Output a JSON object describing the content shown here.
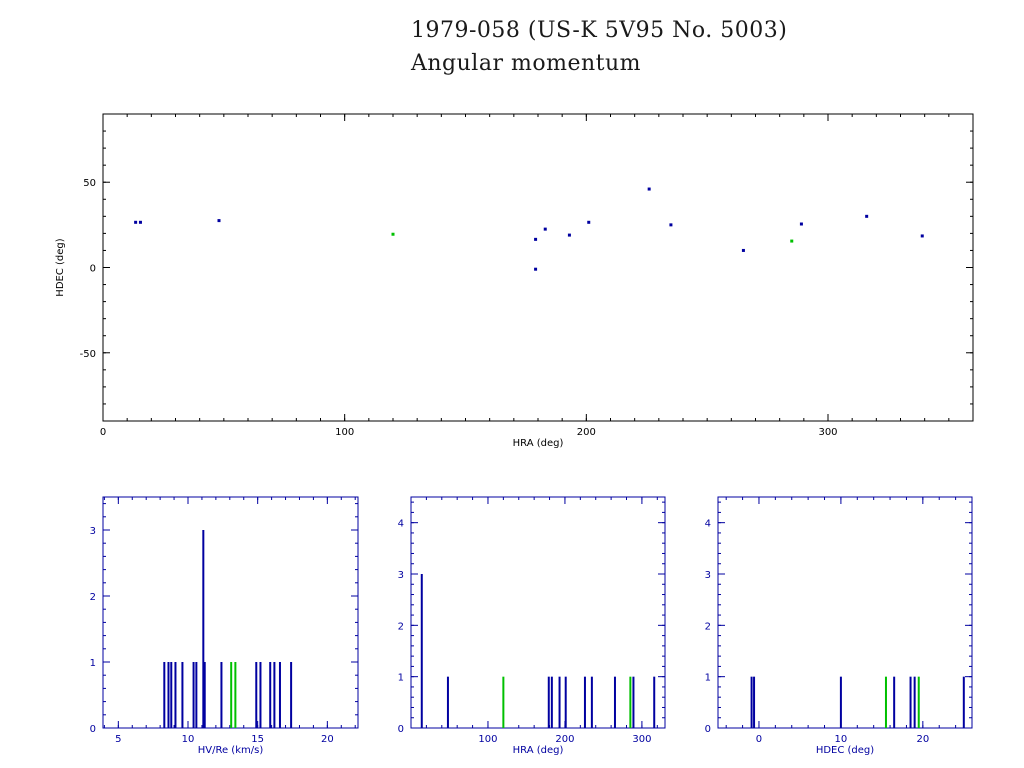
{
  "title": {
    "line1": "1979-058 (US-K 5V95 No. 5003)",
    "line2": "Angular momentum"
  },
  "colors": {
    "frame_black": "#000000",
    "frame_blue": "#0000a0",
    "series_blue": "#0000a0",
    "series_green": "#00c000"
  },
  "chart_data": [
    {
      "type": "scatter",
      "xlabel": "HRA (deg)",
      "ylabel": "HDEC (deg)",
      "xlim": [
        0,
        360
      ],
      "ylim": [
        -90,
        90
      ],
      "xticks": [
        0,
        100,
        200,
        300
      ],
      "yticks": [
        -50,
        0,
        50
      ],
      "series": [
        {
          "color": "blue",
          "points": [
            [
              13.5,
              26.5
            ],
            [
              15.5,
              26.5
            ],
            [
              48,
              27.5
            ],
            [
              179,
              16.5
            ],
            [
              179,
              -1
            ],
            [
              183,
              22.5
            ],
            [
              193,
              19
            ],
            [
              201,
              26.5
            ],
            [
              226,
              46
            ],
            [
              235,
              25
            ],
            [
              265,
              10
            ],
            [
              289,
              25.5
            ],
            [
              316,
              30
            ],
            [
              339,
              18.5
            ]
          ]
        },
        {
          "color": "green",
          "points": [
            [
              120,
              19.5
            ],
            [
              285,
              15.5
            ]
          ]
        }
      ]
    },
    {
      "type": "bar",
      "xlabel": "HV/Re (km/s)",
      "ylabel": "",
      "xlim": [
        3.9,
        22.2
      ],
      "ylim": [
        0,
        3.5
      ],
      "xticks": [
        5,
        10,
        15,
        20
      ],
      "yticks": [
        0,
        1,
        2,
        3
      ],
      "series": [
        {
          "color": "blue",
          "x": [
            8.3,
            8.6,
            8.8,
            9.1,
            9.6,
            10.4,
            10.6,
            11.1,
            11.2,
            12.4,
            14.9,
            15.2,
            15.9,
            16.2,
            16.6,
            17.4
          ],
          "values": [
            1,
            1,
            1,
            1,
            1,
            1,
            1,
            3,
            1,
            1,
            1,
            1,
            1,
            1,
            1,
            1
          ]
        },
        {
          "color": "green",
          "x": [
            13.1,
            13.4
          ],
          "values": [
            1,
            1
          ]
        }
      ]
    },
    {
      "type": "bar",
      "xlabel": "HRA (deg)",
      "ylabel": "",
      "xlim": [
        0,
        330
      ],
      "ylim": [
        0,
        4.5
      ],
      "xticks": [
        100,
        200,
        300
      ],
      "yticks": [
        0,
        1,
        2,
        3,
        4
      ],
      "series": [
        {
          "color": "blue",
          "x": [
            14,
            48,
            179,
            183,
            193,
            201,
            226,
            235,
            265,
            289,
            316
          ],
          "values": [
            3,
            1,
            1,
            1,
            1,
            1,
            1,
            1,
            1,
            1,
            1
          ]
        },
        {
          "color": "green",
          "x": [
            120,
            285
          ],
          "values": [
            1,
            1
          ]
        }
      ]
    },
    {
      "type": "bar",
      "xlabel": "HDEC (deg)",
      "ylabel": "",
      "xlim": [
        -5,
        26
      ],
      "ylim": [
        0,
        4.5
      ],
      "xticks": [
        0,
        10,
        20
      ],
      "yticks": [
        0,
        1,
        2,
        3,
        4
      ],
      "series": [
        {
          "color": "blue",
          "x": [
            -0.9,
            -0.6,
            10,
            16.5,
            18.5,
            19,
            25
          ],
          "values": [
            1,
            1,
            1,
            1,
            1,
            1,
            1
          ]
        },
        {
          "color": "green",
          "x": [
            15.5,
            19.5
          ],
          "values": [
            1,
            1
          ]
        }
      ]
    }
  ]
}
